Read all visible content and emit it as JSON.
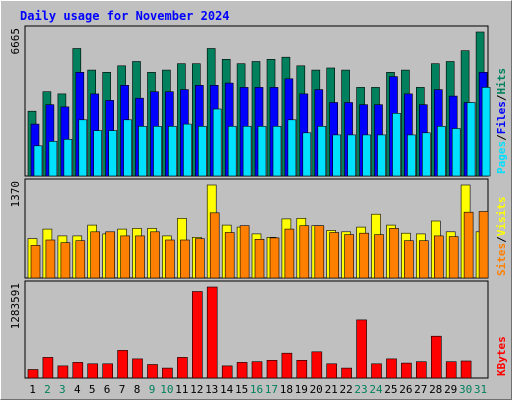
{
  "chart_data": [
    {
      "type": "bar",
      "title": "Daily usage for November 2024",
      "ymax_label": "6665",
      "ymax": 6665,
      "right_label": [
        "Pages",
        "/",
        "Files",
        "/",
        "Hits"
      ],
      "series": [
        {
          "name": "Hits",
          "color": "#00805c",
          "values": [
            3000,
            3900,
            3800,
            5900,
            4900,
            4800,
            5100,
            5300,
            4800,
            4900,
            5200,
            5200,
            5900,
            5400,
            5200,
            5300,
            5400,
            5500,
            5100,
            4900,
            5000,
            4900,
            4100,
            4100,
            4800,
            4900,
            4100,
            5200,
            5300,
            5800,
            6665
          ]
        },
        {
          "name": "Files",
          "color": "#0000ff",
          "values": [
            2400,
            3300,
            3200,
            4800,
            3800,
            3500,
            4200,
            3600,
            3900,
            3900,
            4000,
            4200,
            4200,
            4300,
            4100,
            4100,
            4100,
            4500,
            3800,
            4000,
            3400,
            3400,
            3300,
            3300,
            4600,
            3800,
            3300,
            4000,
            3700,
            3400,
            4800
          ]
        },
        {
          "name": "Pages",
          "color": "#00e0ff",
          "values": [
            1400,
            1600,
            1700,
            2600,
            2100,
            2100,
            2600,
            2300,
            2300,
            2300,
            2400,
            2300,
            3100,
            2300,
            2300,
            2300,
            2300,
            2600,
            2000,
            2300,
            1900,
            1900,
            1900,
            1900,
            2900,
            1900,
            2000,
            2300,
            2200,
            3400,
            4100
          ]
        }
      ]
    },
    {
      "type": "bar",
      "ymax_label": "1370",
      "ymax": 1370,
      "right_label": [
        "Sites",
        "/",
        "Visits"
      ],
      "series": [
        {
          "name": "Visits",
          "color": "#ffff00",
          "values": [
            580,
            720,
            620,
            620,
            780,
            650,
            720,
            730,
            730,
            620,
            880,
            600,
            1370,
            780,
            750,
            650,
            600,
            870,
            880,
            770,
            700,
            680,
            750,
            940,
            780,
            660,
            650,
            840,
            680,
            1370,
            680
          ]
        },
        {
          "name": "Sites",
          "color": "#ff8000",
          "values": [
            480,
            560,
            520,
            550,
            680,
            680,
            620,
            620,
            680,
            560,
            560,
            580,
            960,
            670,
            770,
            570,
            590,
            720,
            770,
            770,
            670,
            640,
            660,
            640,
            730,
            550,
            550,
            620,
            610,
            970,
            980
          ]
        }
      ]
    },
    {
      "type": "bar",
      "ymax_label": "1283591",
      "ymax": 1283591,
      "right_label": [
        "KBytes"
      ],
      "series": [
        {
          "name": "KBytes",
          "color": "#ff0000",
          "values": [
            120000,
            290000,
            170000,
            220000,
            200000,
            200000,
            390000,
            270000,
            190000,
            140000,
            290000,
            1220000,
            1283591,
            170000,
            220000,
            230000,
            250000,
            350000,
            250000,
            370000,
            200000,
            140000,
            820000,
            200000,
            270000,
            210000,
            230000,
            590000,
            230000,
            240000,
            0
          ]
        }
      ]
    }
  ],
  "x_labels": [
    "1",
    "2",
    "3",
    "4",
    "5",
    "6",
    "7",
    "8",
    "9",
    "10",
    "11",
    "12",
    "13",
    "14",
    "15",
    "16",
    "17",
    "18",
    "19",
    "20",
    "21",
    "22",
    "23",
    "24",
    "25",
    "26",
    "27",
    "28",
    "29",
    "30",
    "31"
  ],
  "weekend_days": [
    2,
    3,
    9,
    10,
    16,
    17,
    23,
    24,
    30,
    31
  ],
  "colors": {
    "background": "#c0c0c0",
    "title": "#0000ff",
    "label": "#000000",
    "weekend": "#00805c",
    "panel": "#c0c0c0",
    "frame": "#000000"
  }
}
